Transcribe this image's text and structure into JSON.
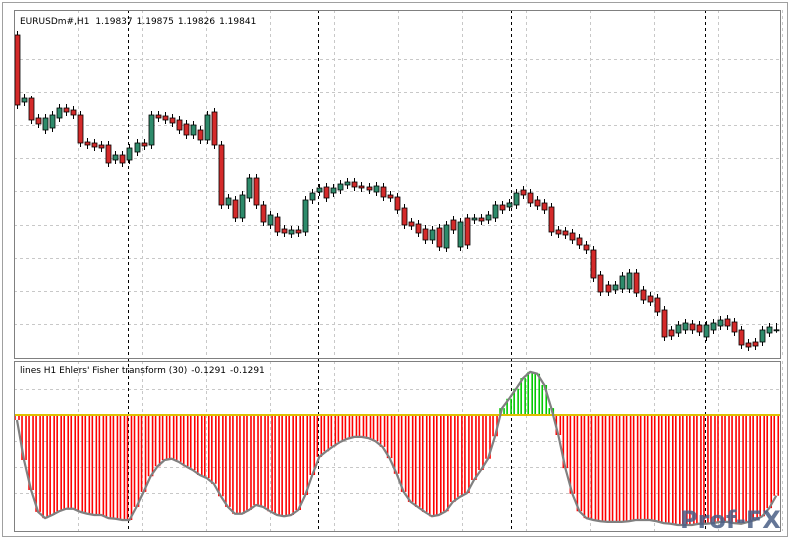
{
  "watermark": "Prof-FX",
  "chart_data": [
    {
      "type": "candlestick",
      "symbol": "EURUSDm#,H1",
      "colors": {
        "up": "#2e8b6b",
        "down": "#d42a2a",
        "wick": "#000000"
      },
      "ylim": [
        1.19715,
        1.2144
      ],
      "ohlc": [
        [
          1.21315,
          1.21335,
          1.20945,
          1.20965
        ],
        [
          1.2098,
          1.2102,
          1.2096,
          1.21
        ],
        [
          1.21,
          1.2101,
          1.2087,
          1.2089
        ],
        [
          1.209,
          1.2092,
          1.2085,
          1.2087
        ],
        [
          1.2084,
          1.2092,
          1.2082,
          1.209
        ],
        [
          1.2085,
          1.20935,
          1.2083,
          1.20915
        ],
        [
          1.209,
          1.2097,
          1.2088,
          1.2095
        ],
        [
          1.2095,
          1.2097,
          1.2091,
          1.2093
        ],
        [
          1.2094,
          1.2096,
          1.20895,
          1.20915
        ],
        [
          1.20915,
          1.20935,
          1.20755,
          1.20775
        ],
        [
          1.2078,
          1.208,
          1.20745,
          1.20765
        ],
        [
          1.20775,
          1.20795,
          1.20735,
          1.20755
        ],
        [
          1.20765,
          1.20785,
          1.2073,
          1.2075
        ],
        [
          1.20765,
          1.20785,
          1.20655,
          1.20675
        ],
        [
          1.2069,
          1.20735,
          1.2067,
          1.20715
        ],
        [
          1.20715,
          1.20735,
          1.20655,
          1.20675
        ],
        [
          1.2069,
          1.2077,
          1.2067,
          1.2075
        ],
        [
          1.2073,
          1.20795,
          1.2071,
          1.20775
        ],
        [
          1.20775,
          1.20795,
          1.2074,
          1.2076
        ],
        [
          1.20765,
          1.20935,
          1.20745,
          1.20915
        ],
        [
          1.20915,
          1.20935,
          1.2088,
          1.209
        ],
        [
          1.2091,
          1.2093,
          1.2087,
          1.2089
        ],
        [
          1.209,
          1.2092,
          1.20855,
          1.20875
        ],
        [
          1.2089,
          1.2091,
          1.2082,
          1.2084
        ],
        [
          1.2087,
          1.2089,
          1.20795,
          1.20815
        ],
        [
          1.20815,
          1.20885,
          1.20795,
          1.20865
        ],
        [
          1.2084,
          1.2086,
          1.2077,
          1.2079
        ],
        [
          1.2079,
          1.20935,
          1.2077,
          1.20915
        ],
        [
          1.2093,
          1.2095,
          1.20745,
          1.20765
        ],
        [
          1.20765,
          1.20785,
          1.20445,
          1.20465
        ],
        [
          1.20465,
          1.2052,
          1.20445,
          1.205
        ],
        [
          1.2049,
          1.2051,
          1.2038,
          1.204
        ],
        [
          1.204,
          1.20535,
          1.2038,
          1.20515
        ],
        [
          1.205,
          1.2062,
          1.2048,
          1.206
        ],
        [
          1.206,
          1.2062,
          1.20445,
          1.20465
        ],
        [
          1.20465,
          1.20485,
          1.2036,
          1.2038
        ],
        [
          1.20365,
          1.20435,
          1.20345,
          1.20415
        ],
        [
          1.20405,
          1.20425,
          1.2031,
          1.2033
        ],
        [
          1.20345,
          1.20365,
          1.20305,
          1.20325
        ],
        [
          1.2032,
          1.2036,
          1.203,
          1.2034
        ],
        [
          1.2034,
          1.2036,
          1.20305,
          1.20325
        ],
        [
          1.2033,
          1.2051,
          1.2031,
          1.2049
        ],
        [
          1.2049,
          1.20545,
          1.2047,
          1.20525
        ],
        [
          1.2053,
          1.2057,
          1.2051,
          1.2055
        ],
        [
          1.20555,
          1.20575,
          1.2048,
          1.205
        ],
        [
          1.20525,
          1.2057,
          1.20505,
          1.2055
        ],
        [
          1.2054,
          1.2059,
          1.2052,
          1.2057
        ],
        [
          1.20565,
          1.206,
          1.20545,
          1.2058
        ],
        [
          1.2058,
          1.206,
          1.20535,
          1.20555
        ],
        [
          1.2056,
          1.2058,
          1.2053,
          1.2055
        ],
        [
          1.20555,
          1.20575,
          1.2052,
          1.2054
        ],
        [
          1.2053,
          1.2058,
          1.2051,
          1.2056
        ],
        [
          1.20555,
          1.20575,
          1.20485,
          1.20505
        ],
        [
          1.20515,
          1.20535,
          1.2048,
          1.205
        ],
        [
          1.20505,
          1.20525,
          1.2042,
          1.2044
        ],
        [
          1.2045,
          1.2047,
          1.20345,
          1.20365
        ],
        [
          1.2038,
          1.204,
          1.2034,
          1.2036
        ],
        [
          1.2037,
          1.2039,
          1.20305,
          1.20325
        ],
        [
          1.20345,
          1.20365,
          1.2027,
          1.2029
        ],
        [
          1.2029,
          1.2036,
          1.2027,
          1.2034
        ],
        [
          1.2035,
          1.2037,
          1.20235,
          1.20255
        ],
        [
          1.2025,
          1.20385,
          1.2023,
          1.20365
        ],
        [
          1.2039,
          1.2041,
          1.2032,
          1.2034
        ],
        [
          1.20255,
          1.204,
          1.20235,
          1.2038
        ],
        [
          1.204,
          1.2042,
          1.20245,
          1.20265
        ],
        [
          1.2039,
          1.2042,
          1.2037,
          1.204
        ],
        [
          1.204,
          1.2042,
          1.20365,
          1.20385
        ],
        [
          1.2039,
          1.20435,
          1.2037,
          1.20415
        ],
        [
          1.204,
          1.20485,
          1.2038,
          1.20465
        ],
        [
          1.20465,
          1.20485,
          1.2042,
          1.2044
        ],
        [
          1.20455,
          1.20495,
          1.20435,
          1.20475
        ],
        [
          1.20465,
          1.20545,
          1.20445,
          1.20525
        ],
        [
          1.2054,
          1.2056,
          1.20495,
          1.20515
        ],
        [
          1.20525,
          1.20545,
          1.20455,
          1.20475
        ],
        [
          1.2049,
          1.2051,
          1.2044,
          1.2046
        ],
        [
          1.20475,
          1.20495,
          1.2042,
          1.2044
        ],
        [
          1.20455,
          1.20475,
          1.2031,
          1.2033
        ],
        [
          1.2034,
          1.2036,
          1.203,
          1.2032
        ],
        [
          1.20335,
          1.20355,
          1.20295,
          1.20315
        ],
        [
          1.20325,
          1.20345,
          1.2027,
          1.2029
        ],
        [
          1.203,
          1.2032,
          1.20245,
          1.20265
        ],
        [
          1.20265,
          1.20285,
          1.2022,
          1.2024
        ],
        [
          1.2024,
          1.2026,
          1.2008,
          1.201
        ],
        [
          1.20115,
          1.20135,
          1.2001,
          1.2003
        ],
        [
          1.20065,
          1.20085,
          1.2001,
          1.2003
        ],
        [
          1.2004,
          1.20085,
          1.2002,
          1.20065
        ],
        [
          1.20045,
          1.2013,
          1.20025,
          1.2011
        ],
        [
          1.20045,
          1.20145,
          1.20025,
          1.20125
        ],
        [
          1.20125,
          1.20145,
          1.20005,
          1.20025
        ],
        [
          1.2004,
          1.2006,
          1.1997,
          1.1999
        ],
        [
          1.2001,
          1.2003,
          1.1996,
          1.1998
        ],
        [
          1.2,
          1.2002,
          1.1991,
          1.1993
        ],
        [
          1.1994,
          1.1996,
          1.19785,
          1.19805
        ],
        [
          1.1984,
          1.1986,
          1.1979,
          1.1981
        ],
        [
          1.19825,
          1.19885,
          1.19805,
          1.19865
        ],
        [
          1.1984,
          1.19895,
          1.1982,
          1.19875
        ],
        [
          1.1987,
          1.1989,
          1.1982,
          1.1984
        ],
        [
          1.19865,
          1.19885,
          1.1981,
          1.1983
        ],
        [
          1.19805,
          1.19885,
          1.19785,
          1.19865
        ],
        [
          1.1984,
          1.19895,
          1.1982,
          1.19875
        ],
        [
          1.1986,
          1.1991,
          1.1984,
          1.1989
        ],
        [
          1.19895,
          1.19915,
          1.1984,
          1.1986
        ],
        [
          1.1988,
          1.199,
          1.1981,
          1.1983
        ],
        [
          1.1984,
          1.1986,
          1.19745,
          1.19765
        ],
        [
          1.19775,
          1.19795,
          1.19735,
          1.19755
        ],
        [
          1.1978,
          1.198,
          1.1974,
          1.1976
        ],
        [
          1.1978,
          1.1986,
          1.1976,
          1.1984
        ],
        [
          1.19825,
          1.19875,
          1.19805,
          1.19855
        ],
        [
          1.19837,
          1.19875,
          1.19826,
          1.19841
        ]
      ]
    },
    {
      "type": "bar",
      "title": "lines H1 Ehlers' Fisher transform (30)",
      "colors": {
        "up": "#00c800",
        "down": "#ff0000",
        "line": "#808080",
        "zero": "#e0c000"
      },
      "ylim": [
        -0.184,
        0.0848
      ],
      "values": [
        -0.008,
        -0.072,
        -0.12,
        -0.155,
        -0.165,
        -0.16,
        -0.154,
        -0.15,
        -0.15,
        -0.155,
        -0.158,
        -0.16,
        -0.16,
        -0.165,
        -0.166,
        -0.168,
        -0.168,
        -0.147,
        -0.123,
        -0.098,
        -0.082,
        -0.072,
        -0.07,
        -0.075,
        -0.082,
        -0.088,
        -0.096,
        -0.101,
        -0.11,
        -0.13,
        -0.147,
        -0.158,
        -0.158,
        -0.152,
        -0.144,
        -0.147,
        -0.154,
        -0.16,
        -0.162,
        -0.16,
        -0.152,
        -0.128,
        -0.096,
        -0.067,
        -0.058,
        -0.05,
        -0.043,
        -0.038,
        -0.035,
        -0.035,
        -0.037,
        -0.042,
        -0.051,
        -0.069,
        -0.094,
        -0.123,
        -0.139,
        -0.147,
        -0.155,
        -0.162,
        -0.16,
        -0.154,
        -0.139,
        -0.131,
        -0.125,
        -0.104,
        -0.088,
        -0.07,
        -0.034,
        0.011,
        0.026,
        0.042,
        0.059,
        0.069,
        0.066,
        0.048,
        0.011,
        -0.032,
        -0.085,
        -0.126,
        -0.154,
        -0.165,
        -0.168,
        -0.17,
        -0.171,
        -0.171,
        -0.171,
        -0.17,
        -0.168,
        -0.168,
        -0.168,
        -0.17,
        -0.173,
        -0.174,
        -0.176,
        -0.176,
        -0.176,
        -0.174,
        -0.174,
        -0.173,
        -0.171,
        -0.171,
        -0.173,
        -0.174,
        -0.171,
        -0.168,
        -0.162,
        -0.149,
        -0.1291
      ]
    }
  ]
}
